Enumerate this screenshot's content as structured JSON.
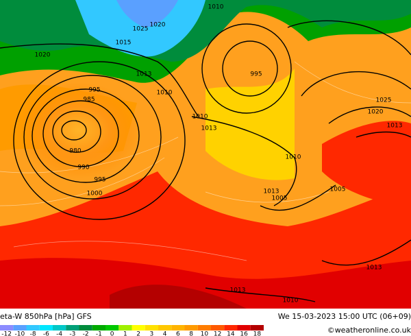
{
  "title": "eta-W 850hPa [hPa] GFS",
  "datetime": "We 15-03-2023 15:00 UTC (06+09)",
  "credit": "©weatheronline.co.uk",
  "legend": {
    "labels": [
      -12,
      -10,
      -8,
      -6,
      -4,
      -3,
      -2,
      -1,
      0,
      1,
      2,
      3,
      4,
      6,
      8,
      10,
      12,
      14,
      16,
      18
    ],
    "colors": [
      "#8c8cff",
      "#5aa0ff",
      "#32c8ff",
      "#00e6ff",
      "#00c8c8",
      "#00a078",
      "#008c3c",
      "#00aa00",
      "#00c800",
      "#a0f000",
      "#ffff00",
      "#ffe100",
      "#ffc800",
      "#ffb400",
      "#ff9b00",
      "#ff7d00",
      "#ff5a00",
      "#ff2800",
      "#e10000",
      "#b40000"
    ]
  },
  "isobars": [
    "1010",
    "1025",
    "1020",
    "1020",
    "1015",
    "1010",
    "995",
    "985",
    "980",
    "990",
    "995",
    "1000",
    "1010",
    "1013",
    "995",
    "1010",
    "1013",
    "1005",
    "1005",
    "1025",
    "1020",
    "1013",
    "1013",
    "1013",
    "1010",
    "1013"
  ]
}
